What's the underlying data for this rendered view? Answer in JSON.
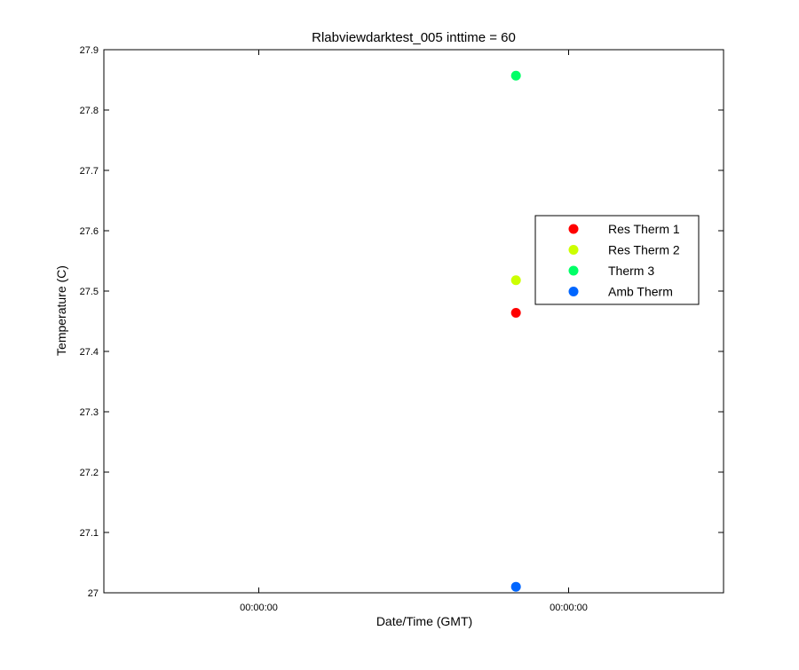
{
  "chart_data": {
    "type": "scatter",
    "title": "Rlabviewdarktest_005 inttime = 60",
    "xlabel": "Date/Time (GMT)",
    "ylabel": "Temperature (C)",
    "ylim": [
      27.0,
      27.9
    ],
    "xlim": [
      -0.5,
      1.5
    ],
    "x_ticks": [
      {
        "value": 0,
        "label": "00:00:00"
      },
      {
        "value": 1,
        "label": "00:00:00"
      },
      {
        "value": 2,
        "label": "00:00:00"
      }
    ],
    "y_ticks": [
      {
        "value": 27.0,
        "label": "27"
      },
      {
        "value": 27.1,
        "label": "27.1"
      },
      {
        "value": 27.2,
        "label": "27.2"
      },
      {
        "value": 27.3,
        "label": "27.3"
      },
      {
        "value": 27.4,
        "label": "27.4"
      },
      {
        "value": 27.5,
        "label": "27.5"
      },
      {
        "value": 27.6,
        "label": "27.6"
      },
      {
        "value": 27.7,
        "label": "27.7"
      },
      {
        "value": 27.8,
        "label": "27.8"
      },
      {
        "value": 27.9,
        "label": "27.9"
      }
    ],
    "grid": false,
    "legend_position": "right",
    "series": [
      {
        "name": "Res Therm 1",
        "color": "#ff0000",
        "x": [
          0.83
        ],
        "y": [
          27.464
        ]
      },
      {
        "name": "Res Therm 2",
        "color": "#ccff00",
        "x": [
          0.83
        ],
        "y": [
          27.518
        ]
      },
      {
        "name": "Therm 3",
        "color": "#00ff66",
        "x": [
          0.83
        ],
        "y": [
          27.857
        ]
      },
      {
        "name": "Amb Therm",
        "color": "#0066ff",
        "x": [
          0.83
        ],
        "y": [
          27.01
        ]
      }
    ]
  }
}
